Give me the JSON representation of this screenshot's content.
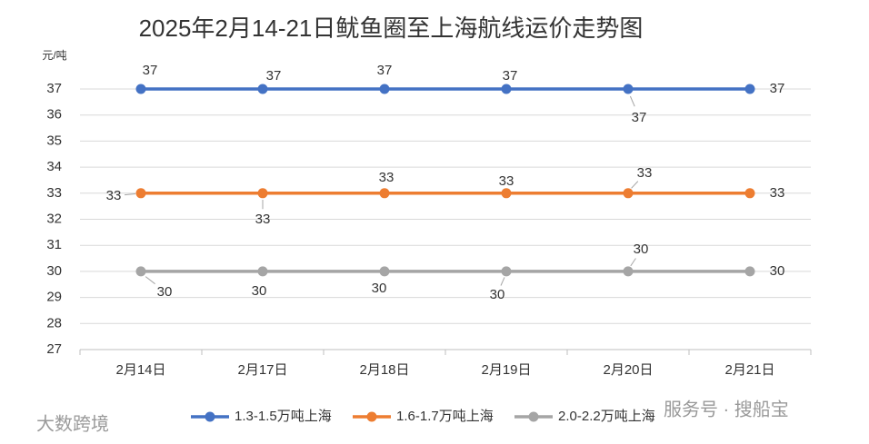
{
  "chart_data": {
    "type": "line",
    "title": "2025年2月14-21日鱿鱼圈至上海航线运价走势图",
    "y_unit": "元/吨",
    "categories": [
      "2月14日",
      "2月17日",
      "2月18日",
      "2月19日",
      "2月20日",
      "2月21日"
    ],
    "series": [
      {
        "name": "1.3-1.5万吨上海",
        "color": "#4472c4",
        "values": [
          37,
          37,
          37,
          37,
          37,
          37
        ]
      },
      {
        "name": "1.6-1.7万吨上海",
        "color": "#ed7d31",
        "values": [
          33,
          33,
          33,
          33,
          33,
          33
        ]
      },
      {
        "name": "2.0-2.2万吨上海",
        "color": "#a5a5a5",
        "values": [
          30,
          30,
          30,
          30,
          30,
          30
        ]
      }
    ],
    "ylim": [
      27,
      37
    ],
    "yticks": [
      27,
      28,
      29,
      30,
      31,
      32,
      33,
      34,
      35,
      36,
      37
    ],
    "grid": true,
    "legend": "bottom"
  },
  "watermarks": [
    "大数跨境",
    "服务号 · 搜船宝"
  ]
}
